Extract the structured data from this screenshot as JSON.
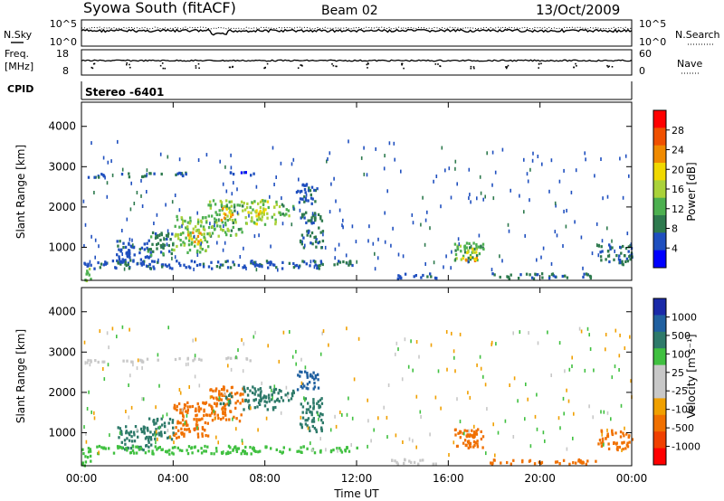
{
  "header": {
    "title": "Syowa South (fitACF)",
    "beam": "Beam 02",
    "date": "13/Oct/2009"
  },
  "status_panels": {
    "nsky_label": "N.Sky",
    "nsky_ticks": [
      "10^5",
      "10^0"
    ],
    "nsearch_label": "N.Search",
    "nsearch_ticks": [
      "10^5",
      "10^0"
    ],
    "freq_label": "Freq.",
    "freq_unit": "[MHz]",
    "freq_ticks": [
      "18",
      "8"
    ],
    "nave_label": "Nave",
    "nave_ticks": [
      "60",
      "0"
    ],
    "cpid_label": "CPID",
    "cpid_value": "Stereo -6401"
  },
  "colors": {
    "power_scale": [
      "#0000ff",
      "#1f4fbf",
      "#2e7a4e",
      "#4db050",
      "#aad23a",
      "#f0d800",
      "#f08a00",
      "#f05000",
      "#ff0000"
    ],
    "velocity_scale": [
      "#ff0000",
      "#f04000",
      "#f07000",
      "#f0a000",
      "#c8c8c8",
      "#c8c8c8",
      "#40c040",
      "#2e7a6a",
      "#2060a0",
      "#1a2aa8"
    ]
  },
  "chart_data": [
    {
      "type": "heatmap",
      "panel": "power",
      "ylabel": "Slant Range [km]",
      "ylim": [
        180,
        4600
      ],
      "yticks": [
        "1000",
        "2000",
        "3000",
        "4000"
      ],
      "xlim": [
        0,
        24
      ],
      "xticks": [
        "00:00",
        "04:00",
        "08:00",
        "12:00",
        "16:00",
        "20:00",
        "00:00"
      ],
      "colorbar_label": "Power [dB]",
      "colorbar_ticks": [
        "28",
        "24",
        "20",
        "16",
        "12",
        "8",
        "4"
      ],
      "colorbar_range": [
        0,
        32
      ],
      "regions": [
        {
          "t0": 0.2,
          "t1": 1.0,
          "r0": 2750,
          "r1": 2850,
          "v": 6
        },
        {
          "t0": 1.5,
          "t1": 3.5,
          "r0": 2780,
          "r1": 2870,
          "v": 7
        },
        {
          "t0": 4.0,
          "t1": 5.2,
          "r0": 2800,
          "r1": 2880,
          "v": 6
        },
        {
          "t0": 6.2,
          "t1": 7.5,
          "r0": 2820,
          "r1": 2900,
          "v": 5
        },
        {
          "t0": 1.5,
          "t1": 3.0,
          "r0": 600,
          "r1": 1200,
          "v": 6
        },
        {
          "t0": 2.8,
          "t1": 4.0,
          "r0": 800,
          "r1": 1400,
          "v": 9
        },
        {
          "t0": 4.0,
          "t1": 5.5,
          "r0": 900,
          "r1": 1800,
          "v": 14
        },
        {
          "t0": 4.5,
          "t1": 5.2,
          "r0": 1100,
          "r1": 1400,
          "v": 22
        },
        {
          "t0": 5.5,
          "t1": 7.0,
          "r0": 1300,
          "r1": 2200,
          "v": 13
        },
        {
          "t0": 6.0,
          "t1": 6.6,
          "r0": 1700,
          "r1": 2000,
          "v": 20
        },
        {
          "t0": 7.0,
          "t1": 8.5,
          "r0": 1600,
          "r1": 2200,
          "v": 15
        },
        {
          "t0": 7.5,
          "t1": 8.0,
          "r0": 1800,
          "r1": 2000,
          "v": 18
        },
        {
          "t0": 8.5,
          "t1": 9.3,
          "r0": 1800,
          "r1": 2100,
          "v": 12
        },
        {
          "t0": 9.5,
          "t1": 10.5,
          "r0": 1000,
          "r1": 1900,
          "v": 8
        },
        {
          "t0": 9.3,
          "t1": 10.3,
          "r0": 2100,
          "r1": 2600,
          "v": 6
        },
        {
          "t0": 0.0,
          "t1": 10.5,
          "r0": 500,
          "r1": 700,
          "v": 6
        },
        {
          "t0": 10.0,
          "t1": 12.0,
          "r0": 550,
          "r1": 700,
          "v": 8
        },
        {
          "t0": 13.5,
          "t1": 15.5,
          "r0": 250,
          "r1": 380,
          "v": 6
        },
        {
          "t0": 16.2,
          "t1": 17.5,
          "r0": 650,
          "r1": 1150,
          "v": 12
        },
        {
          "t0": 16.5,
          "t1": 17.2,
          "r0": 700,
          "r1": 850,
          "v": 23
        },
        {
          "t0": 16.5,
          "t1": 17.2,
          "r0": 900,
          "r1": 1000,
          "v": 18
        },
        {
          "t0": 17.8,
          "t1": 22.5,
          "r0": 250,
          "r1": 380,
          "v": 8
        },
        {
          "t0": 22.5,
          "t1": 24.0,
          "r0": 600,
          "r1": 1100,
          "v": 8
        },
        {
          "t0": 0.0,
          "t1": 0.4,
          "r0": 200,
          "r1": 500,
          "v": 14
        }
      ]
    },
    {
      "type": "heatmap",
      "panel": "velocity",
      "ylabel": "Slant Range [km]",
      "ylim": [
        180,
        4600
      ],
      "yticks": [
        "1000",
        "2000",
        "3000",
        "4000"
      ],
      "xlim": [
        0,
        24
      ],
      "xticks": [
        "00:00",
        "04:00",
        "08:00",
        "12:00",
        "16:00",
        "20:00",
        "00:00"
      ],
      "xlabel": "Time UT",
      "colorbar_label": "Velocity [m s⁻¹]",
      "colorbar_ticks": [
        "1000",
        "500",
        "100",
        "25",
        "-25",
        "-100",
        "-500",
        "-1000"
      ],
      "regions": [
        {
          "t0": 0.2,
          "t1": 1.0,
          "r0": 2750,
          "r1": 2850,
          "v": 20
        },
        {
          "t0": 1.5,
          "t1": 3.5,
          "r0": 2780,
          "r1": 2870,
          "v": 0
        },
        {
          "t0": 4.0,
          "t1": 5.2,
          "r0": 2800,
          "r1": 2880,
          "v": 10
        },
        {
          "t0": 6.2,
          "t1": 7.5,
          "r0": 2820,
          "r1": 2900,
          "v": -10
        },
        {
          "t0": 1.5,
          "t1": 3.0,
          "r0": 600,
          "r1": 1200,
          "v": 300
        },
        {
          "t0": 2.8,
          "t1": 4.0,
          "r0": 800,
          "r1": 1400,
          "v": 150
        },
        {
          "t0": 4.0,
          "t1": 5.5,
          "r0": 900,
          "r1": 1800,
          "v": -300
        },
        {
          "t0": 4.5,
          "t1": 5.2,
          "r0": 1100,
          "r1": 1400,
          "v": -450
        },
        {
          "t0": 5.5,
          "t1": 7.0,
          "r0": 1300,
          "r1": 2200,
          "v": -250
        },
        {
          "t0": 6.0,
          "t1": 6.6,
          "r0": 1700,
          "r1": 2000,
          "v": 200
        },
        {
          "t0": 7.0,
          "t1": 8.5,
          "r0": 1600,
          "r1": 2200,
          "v": 200
        },
        {
          "t0": 7.5,
          "t1": 8.0,
          "r0": 1800,
          "r1": 2000,
          "v": 400
        },
        {
          "t0": 8.5,
          "t1": 9.3,
          "r0": 1800,
          "r1": 2100,
          "v": 250
        },
        {
          "t0": 9.5,
          "t1": 10.5,
          "r0": 1000,
          "r1": 1900,
          "v": 300
        },
        {
          "t0": 9.3,
          "t1": 10.3,
          "r0": 2100,
          "r1": 2600,
          "v": 600
        },
        {
          "t0": 0.0,
          "t1": 10.5,
          "r0": 500,
          "r1": 700,
          "v": 60
        },
        {
          "t0": 10.0,
          "t1": 12.0,
          "r0": 550,
          "r1": 700,
          "v": 30
        },
        {
          "t0": 13.5,
          "t1": 15.5,
          "r0": 250,
          "r1": 380,
          "v": -20
        },
        {
          "t0": 16.2,
          "t1": 17.5,
          "r0": 650,
          "r1": 1150,
          "v": -200
        },
        {
          "t0": 16.5,
          "t1": 17.2,
          "r0": 700,
          "r1": 850,
          "v": -350
        },
        {
          "t0": 16.5,
          "t1": 17.2,
          "r0": 900,
          "r1": 1000,
          "v": -250
        },
        {
          "t0": 17.8,
          "t1": 22.5,
          "r0": 250,
          "r1": 380,
          "v": -150
        },
        {
          "t0": 22.5,
          "t1": 24.0,
          "r0": 600,
          "r1": 1100,
          "v": -200
        },
        {
          "t0": 0.0,
          "t1": 0.4,
          "r0": 200,
          "r1": 500,
          "v": 80
        }
      ]
    }
  ]
}
